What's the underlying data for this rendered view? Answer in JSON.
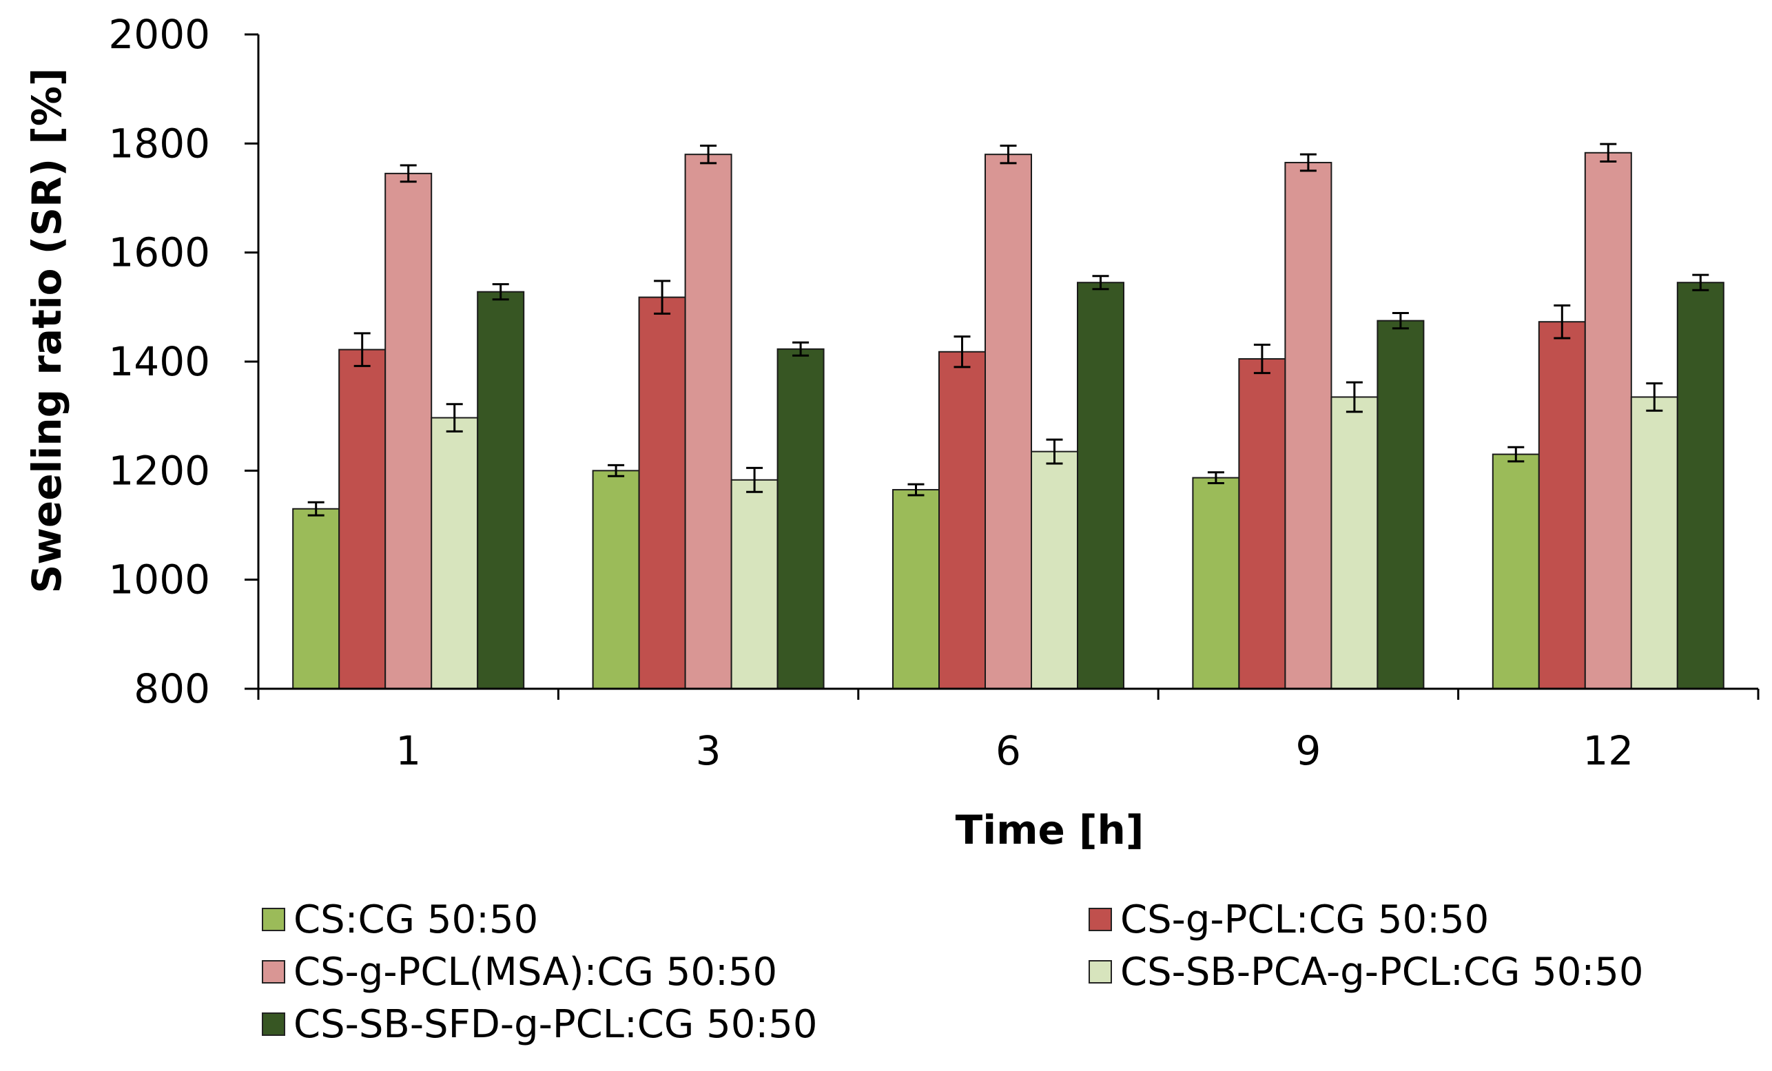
{
  "chart_data": {
    "type": "bar",
    "title": "",
    "xlabel": "Time [h]",
    "ylabel": "Sweeling ratio (SR)  [%]",
    "categories": [
      "1",
      "3",
      "6",
      "9",
      "12"
    ],
    "ylim": [
      800,
      2000
    ],
    "yticks": [
      800,
      1000,
      1200,
      1400,
      1600,
      1800,
      2000
    ],
    "grid": false,
    "legend_position": "bottom",
    "series": [
      {
        "name": "CS:CG 50:50",
        "color": "#9bbb59",
        "values": [
          1130,
          1200,
          1165,
          1187,
          1230
        ],
        "errors": [
          12,
          10,
          10,
          10,
          13
        ]
      },
      {
        "name": "CS-g-PCL:CG 50:50",
        "color": "#c0504d",
        "values": [
          1422,
          1518,
          1418,
          1405,
          1473
        ],
        "errors": [
          30,
          30,
          28,
          26,
          30
        ]
      },
      {
        "name": "CS-g-PCL(MSA):CG 50:50",
        "color": "#d99694",
        "values": [
          1745,
          1780,
          1780,
          1765,
          1783
        ],
        "errors": [
          15,
          16,
          16,
          15,
          16
        ]
      },
      {
        "name": "CS-SB-PCA-g-PCL:CG 50:50",
        "color": "#d7e4bd",
        "values": [
          1297,
          1183,
          1235,
          1335,
          1335
        ],
        "errors": [
          25,
          22,
          22,
          27,
          25
        ]
      },
      {
        "name": "CS-SB-SFD-g-PCL:CG 50:50",
        "color": "#375623",
        "values": [
          1528,
          1423,
          1545,
          1475,
          1545
        ],
        "errors": [
          14,
          12,
          12,
          14,
          14
        ]
      }
    ]
  }
}
